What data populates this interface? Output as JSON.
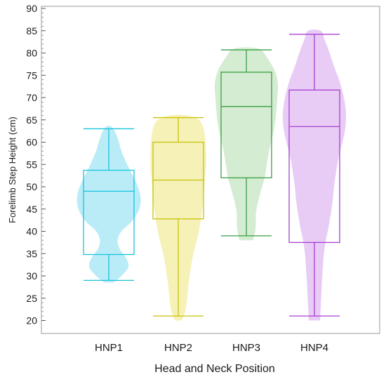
{
  "chart_data": {
    "type": "box",
    "xlabel": "Head and Neck Position",
    "ylabel": "Forelimb Step Height (cm)",
    "ylim": [
      18,
      90
    ],
    "yticks": [
      20,
      25,
      30,
      35,
      40,
      45,
      50,
      55,
      60,
      65,
      70,
      75,
      80,
      85,
      90
    ],
    "grid": false,
    "categories": [
      "HNP1",
      "HNP2",
      "HNP3",
      "HNP4"
    ],
    "series": [
      {
        "category": "HNP1",
        "color": "#19c3dc",
        "fill": "#aee9f7",
        "min": 29,
        "q1": 34.8,
        "median": 49,
        "q3": 53.7,
        "max": 63,
        "violin": [
          [
            28.5,
            0.15
          ],
          [
            30,
            0.4
          ],
          [
            32,
            0.62
          ],
          [
            34,
            0.55
          ],
          [
            36,
            0.35
          ],
          [
            38,
            0.28
          ],
          [
            40,
            0.4
          ],
          [
            42,
            0.7
          ],
          [
            44,
            0.9
          ],
          [
            46,
            1.0
          ],
          [
            48,
            1.0
          ],
          [
            50,
            0.92
          ],
          [
            52,
            0.8
          ],
          [
            54,
            0.65
          ],
          [
            56,
            0.52
          ],
          [
            58,
            0.4
          ],
          [
            60,
            0.32
          ],
          [
            62,
            0.22
          ],
          [
            63.5,
            0.08
          ]
        ]
      },
      {
        "category": "HNP2",
        "color": "#c9c30a",
        "fill": "#f3efaa",
        "min": 21,
        "q1": 42.8,
        "median": 51.5,
        "q3": 60,
        "max": 65.5,
        "violin": [
          [
            20,
            0.1
          ],
          [
            22,
            0.22
          ],
          [
            25,
            0.28
          ],
          [
            28,
            0.32
          ],
          [
            31,
            0.38
          ],
          [
            34,
            0.45
          ],
          [
            37,
            0.55
          ],
          [
            40,
            0.65
          ],
          [
            43,
            0.72
          ],
          [
            46,
            0.78
          ],
          [
            49,
            0.82
          ],
          [
            52,
            0.85
          ],
          [
            55,
            0.88
          ],
          [
            58,
            0.88
          ],
          [
            61,
            0.85
          ],
          [
            63,
            0.8
          ],
          [
            65,
            0.65
          ],
          [
            66,
            0.25
          ]
        ]
      },
      {
        "category": "HNP3",
        "color": "#3a9e45",
        "fill": "#cde9c9",
        "min": 39,
        "q1": 52,
        "median": 68,
        "q3": 75.7,
        "max": 80.7,
        "violin": [
          [
            38,
            0.22
          ],
          [
            40,
            0.28
          ],
          [
            42,
            0.3
          ],
          [
            44,
            0.3
          ],
          [
            46,
            0.35
          ],
          [
            48,
            0.42
          ],
          [
            50,
            0.5
          ],
          [
            52,
            0.58
          ],
          [
            55,
            0.65
          ],
          [
            58,
            0.72
          ],
          [
            61,
            0.82
          ],
          [
            64,
            0.9
          ],
          [
            67,
            0.95
          ],
          [
            70,
            0.98
          ],
          [
            73,
            1.0
          ],
          [
            76,
            0.9
          ],
          [
            79,
            0.65
          ],
          [
            81,
            0.38
          ]
        ]
      },
      {
        "category": "HNP4",
        "color": "#a83fd0",
        "fill": "#e4c3f4",
        "min": 21,
        "q1": 37.5,
        "median": 63.5,
        "q3": 71.7,
        "max": 84.2,
        "violin": [
          [
            20,
            0.18
          ],
          [
            23,
            0.2
          ],
          [
            26,
            0.22
          ],
          [
            29,
            0.24
          ],
          [
            32,
            0.27
          ],
          [
            35,
            0.3
          ],
          [
            38,
            0.36
          ],
          [
            41,
            0.45
          ],
          [
            44,
            0.52
          ],
          [
            47,
            0.58
          ],
          [
            50,
            0.62
          ],
          [
            53,
            0.68
          ],
          [
            56,
            0.75
          ],
          [
            59,
            0.85
          ],
          [
            62,
            0.95
          ],
          [
            65,
            1.0
          ],
          [
            68,
            0.98
          ],
          [
            71,
            0.9
          ],
          [
            74,
            0.78
          ],
          [
            77,
            0.62
          ],
          [
            80,
            0.48
          ],
          [
            83,
            0.32
          ],
          [
            85,
            0.2
          ]
        ]
      }
    ]
  }
}
